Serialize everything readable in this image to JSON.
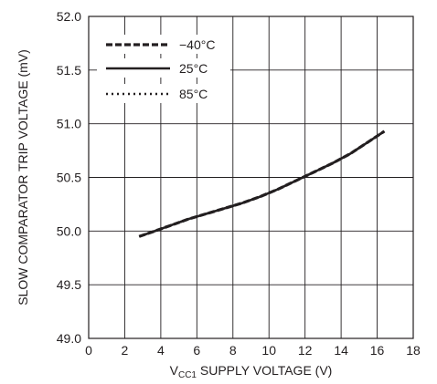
{
  "chart_data": {
    "type": "line",
    "xlabel": {
      "prefix": "V",
      "subscript": "CC1",
      "suffix": " SUPPLY VOLTAGE (V)"
    },
    "ylabel": "SLOW COMPARATOR TRIP VOLTAGE (mV)",
    "xlim": [
      0,
      18
    ],
    "ylim": [
      49.0,
      52.0
    ],
    "xticks": [
      "0",
      "2",
      "4",
      "6",
      "8",
      "10",
      "12",
      "14",
      "16",
      "18"
    ],
    "yticks": [
      "49.0",
      "49.5",
      "50.0",
      "50.5",
      "51.0",
      "51.5",
      "52.0"
    ],
    "grid": true,
    "legend_position": "top-left",
    "series": [
      {
        "name": "−40°C",
        "style": "dashed",
        "x": [
          2.8,
          3.5,
          4.5,
          5.5,
          6.5,
          7.5,
          8.5,
          9.5,
          10.5,
          11.5,
          12.5,
          13.5,
          14.5,
          15.5,
          16.4
        ],
        "y": [
          49.95,
          49.99,
          50.05,
          50.11,
          50.16,
          50.21,
          50.26,
          50.32,
          50.39,
          50.47,
          50.55,
          50.63,
          50.72,
          50.83,
          50.93
        ]
      },
      {
        "name": "25°C",
        "style": "solid",
        "x": [
          2.8,
          3.5,
          4.5,
          5.5,
          6.5,
          7.5,
          8.5,
          9.5,
          10.5,
          11.5,
          12.5,
          13.5,
          14.5,
          15.5,
          16.4
        ],
        "y": [
          49.95,
          49.99,
          50.05,
          50.11,
          50.16,
          50.21,
          50.26,
          50.32,
          50.39,
          50.47,
          50.55,
          50.63,
          50.72,
          50.83,
          50.93
        ]
      },
      {
        "name": "85°C",
        "style": "dotted",
        "x": [
          2.8,
          3.5,
          4.5,
          5.5,
          6.5,
          7.5,
          8.5,
          9.5,
          10.5,
          11.5,
          12.5,
          13.5,
          14.5,
          15.5,
          16.4
        ],
        "y": [
          49.95,
          49.99,
          50.05,
          50.11,
          50.16,
          50.21,
          50.26,
          50.32,
          50.39,
          50.47,
          50.55,
          50.63,
          50.72,
          50.83,
          50.93
        ]
      }
    ]
  }
}
